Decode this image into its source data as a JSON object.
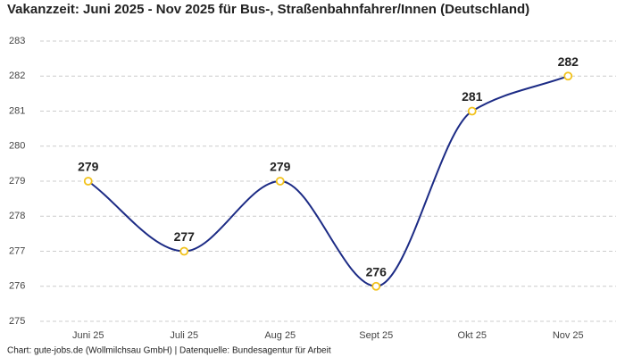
{
  "chart_data": {
    "type": "line",
    "title": "Vakanzzeit: Juni 2025 - Nov 2025 für Bus-, Straßenbahnfahrer/Innen (Deutschland)",
    "caption": "Chart: gute-jobs.de (Wollmilchsau GmbH) | Datenquelle: Bundesagentur für Arbeit",
    "categories": [
      "Juni 25",
      "Juli 25",
      "Aug 25",
      "Sept 25",
      "Okt 25",
      "Nov 25"
    ],
    "values": [
      279,
      277,
      279,
      276,
      281,
      282
    ],
    "color": "#1c2b85",
    "marker_color": "#f2c21b",
    "ylim": [
      275,
      283
    ],
    "yticks": [
      275,
      276,
      277,
      278,
      279,
      280,
      281,
      282,
      283
    ],
    "grid": true,
    "smooth": true,
    "data_labels": true
  }
}
